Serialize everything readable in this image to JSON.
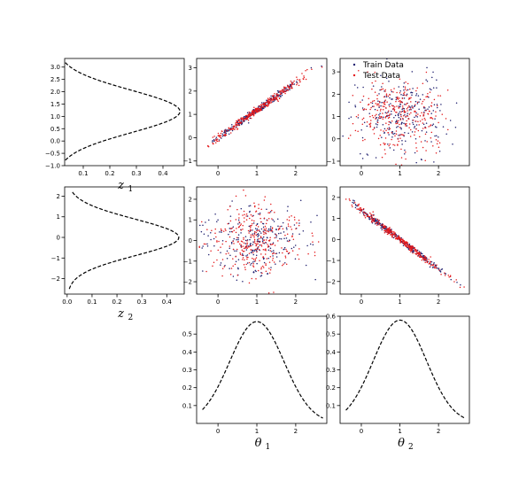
{
  "colors": {
    "train": "#1f1f6e",
    "test": "#e41a1c",
    "curve": "#000000",
    "frame": "#000000"
  },
  "chart_data": [
    {
      "id": "z1_marginal",
      "type": "line",
      "orientation": "horizontal-density",
      "xlabel": "z",
      "xlabel_sub": "1",
      "xlim": [
        0.03,
        0.48
      ],
      "ylim": [
        -1.0,
        3.35
      ],
      "xticks": [
        0.1,
        0.2,
        0.3,
        0.4
      ],
      "xtick_labels": [
        "0.1",
        "0.2",
        "0.3",
        "0.4"
      ],
      "yticks": [
        -1.0,
        -0.5,
        0.0,
        0.5,
        1.0,
        1.5,
        2.0,
        2.5,
        3.0
      ],
      "ytick_labels": [
        "−1.0",
        "−0.5",
        "0.0",
        "0.5",
        "1.0",
        "1.5",
        "2.0",
        "2.5",
        "3.0"
      ],
      "density": {
        "mean": 1.2,
        "sd": 0.86,
        "range": [
          -0.78,
          3.2
        ]
      }
    },
    {
      "id": "theta1_vs_z1",
      "type": "scatter",
      "xlim": [
        -0.55,
        2.8
      ],
      "ylim": [
        -1.2,
        3.4
      ],
      "xticks": [
        0,
        1,
        2
      ],
      "xtick_labels": [
        "0",
        "1",
        "2"
      ],
      "yticks": [
        -1,
        0,
        1,
        2,
        3
      ],
      "ytick_labels": [
        "−1",
        "0",
        "1",
        "2",
        "3"
      ],
      "series": [
        {
          "relation": "linear",
          "n": 260,
          "x_mean": 1.0,
          "x_sd": 0.6,
          "slope": 1.18,
          "intercept": 0.0,
          "noise": 0.07,
          "x_range": [
            -0.35,
            2.7
          ]
        },
        {
          "relation": "linear",
          "n": 320,
          "x_mean": 1.0,
          "x_sd": 0.6,
          "slope": 1.18,
          "intercept": 0.0,
          "noise": 0.08,
          "x_range": [
            -0.35,
            2.7
          ]
        }
      ]
    },
    {
      "id": "theta2_vs_z1",
      "type": "scatter",
      "xlim": [
        -0.55,
        2.8
      ],
      "ylim": [
        -1.2,
        3.6
      ],
      "xticks": [
        0,
        1,
        2
      ],
      "xtick_labels": [
        "0",
        "1",
        "2"
      ],
      "yticks": [
        -1,
        0,
        1,
        2,
        3
      ],
      "ytick_labels": [
        "−1",
        "0",
        "1",
        "2",
        "3"
      ],
      "legend": {
        "placement": "top-left",
        "entries": [
          "Train Data",
          "Test Data"
        ]
      },
      "series": [
        {
          "name": "Train Data",
          "relation": "independent",
          "n": 260,
          "x_mean": 1.0,
          "x_sd": 0.6,
          "y_mean": 1.1,
          "y_sd": 0.85
        },
        {
          "name": "Test Data",
          "relation": "independent",
          "n": 320,
          "x_mean": 1.0,
          "x_sd": 0.6,
          "y_mean": 1.1,
          "y_sd": 0.85
        }
      ]
    },
    {
      "id": "z2_marginal",
      "type": "line",
      "orientation": "horizontal-density",
      "xlabel": "z",
      "xlabel_sub": "2",
      "xlim": [
        -0.01,
        0.47
      ],
      "ylim": [
        -2.75,
        2.45
      ],
      "xticks": [
        0.0,
        0.1,
        0.2,
        0.3,
        0.4
      ],
      "xtick_labels": [
        "0.0",
        "0.1",
        "0.2",
        "0.3",
        "0.4"
      ],
      "yticks": [
        -2,
        -1,
        0,
        1,
        2
      ],
      "ytick_labels": [
        "−2",
        "−1",
        "0",
        "1",
        "2"
      ],
      "density": {
        "mean": 0.0,
        "sd": 0.89,
        "range": [
          -2.5,
          2.2
        ]
      }
    },
    {
      "id": "theta1_vs_z2",
      "type": "scatter",
      "xlim": [
        -0.55,
        2.8
      ],
      "ylim": [
        -2.6,
        2.6
      ],
      "xticks": [
        0,
        1,
        2
      ],
      "xtick_labels": [
        "0",
        "1",
        "2"
      ],
      "yticks": [
        -2,
        -1,
        0,
        1,
        2
      ],
      "ytick_labels": [
        "−2",
        "−1",
        "0",
        "1",
        "2"
      ],
      "series": [
        {
          "relation": "independent",
          "n": 260,
          "x_mean": 1.0,
          "x_sd": 0.6,
          "y_mean": 0.0,
          "y_sd": 0.85
        },
        {
          "relation": "independent",
          "n": 320,
          "x_mean": 1.0,
          "x_sd": 0.6,
          "y_mean": 0.0,
          "y_sd": 0.85
        }
      ]
    },
    {
      "id": "theta2_vs_z2",
      "type": "scatter",
      "xlim": [
        -0.55,
        2.8
      ],
      "ylim": [
        -2.6,
        2.5
      ],
      "xticks": [
        0,
        1,
        2
      ],
      "xtick_labels": [
        "0",
        "1",
        "2"
      ],
      "yticks": [
        -2,
        -1,
        0,
        1,
        2
      ],
      "ytick_labels": [
        "−2",
        "−1",
        "0",
        "1",
        "2"
      ],
      "series": [
        {
          "relation": "linear",
          "n": 260,
          "x_mean": 1.0,
          "x_sd": 0.6,
          "slope": -1.4,
          "intercept": 1.4,
          "noise": 0.07,
          "x_range": [
            -0.4,
            2.7
          ]
        },
        {
          "relation": "linear",
          "n": 320,
          "x_mean": 1.0,
          "x_sd": 0.6,
          "slope": -1.4,
          "intercept": 1.4,
          "noise": 0.08,
          "x_range": [
            -0.4,
            2.7
          ]
        }
      ]
    },
    {
      "id": "theta1_marginal",
      "type": "line",
      "xlabel": "θ",
      "xlabel_sub": "1",
      "xlim": [
        -0.55,
        2.8
      ],
      "ylim": [
        0.0,
        0.6
      ],
      "xticks": [
        0,
        1,
        2
      ],
      "xtick_labels": [
        "0",
        "1",
        "2"
      ],
      "yticks": [
        0.1,
        0.2,
        0.3,
        0.4,
        0.5
      ],
      "ytick_labels": [
        "0.1",
        "0.2",
        "0.3",
        "0.4",
        "0.5"
      ],
      "density": {
        "mean": 1.0,
        "sd": 0.7,
        "range": [
          -0.4,
          2.7
        ]
      }
    },
    {
      "id": "theta2_marginal",
      "type": "line",
      "xlabel": "θ",
      "xlabel_sub": "2",
      "xlim": [
        -0.55,
        2.8
      ],
      "ylim": [
        0.0,
        0.6
      ],
      "xticks": [
        0,
        1,
        2
      ],
      "xtick_labels": [
        "0",
        "1",
        "2"
      ],
      "yticks": [
        0.1,
        0.2,
        0.3,
        0.4,
        0.5,
        0.6
      ],
      "ytick_labels": [
        "0.1",
        "0.2",
        "0.3",
        "0.4",
        "0.5",
        "0.6"
      ],
      "density": {
        "mean": 1.0,
        "sd": 0.69,
        "range": [
          -0.4,
          2.7
        ]
      }
    }
  ]
}
